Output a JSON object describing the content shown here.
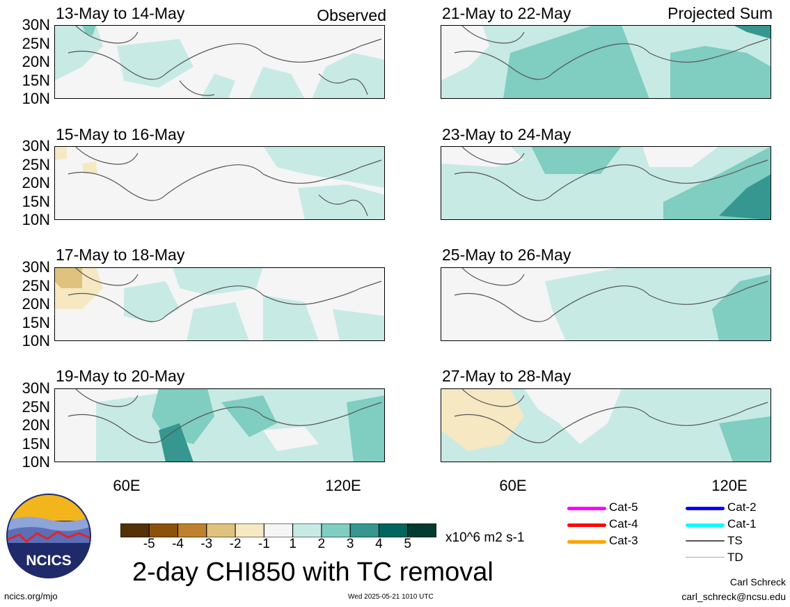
{
  "panels": [
    {
      "title": "13-May to 14-May",
      "tag": "Observed"
    },
    {
      "title": "15-May to 16-May",
      "tag": ""
    },
    {
      "title": "17-May to 18-May",
      "tag": ""
    },
    {
      "title": "19-May to 20-May",
      "tag": ""
    },
    {
      "title": "21-May to 22-May",
      "tag": "Projected Sum"
    },
    {
      "title": "23-May to 24-May",
      "tag": ""
    },
    {
      "title": "25-May to 26-May",
      "tag": ""
    },
    {
      "title": "27-May to 28-May",
      "tag": ""
    }
  ],
  "lat_labels": [
    "30N",
    "25N",
    "20N",
    "15N",
    "10N"
  ],
  "lon_labels": [
    "60E",
    "120E"
  ],
  "colorbar": {
    "ticks": [
      "-5",
      "-4",
      "-3",
      "-2",
      "-1",
      "1",
      "2",
      "3",
      "4",
      "5"
    ],
    "colors": [
      "#543005",
      "#8c510a",
      "#bf812d",
      "#dfc27d",
      "#f6e8c3",
      "#f5f5f5",
      "#c7eae5",
      "#80cdc1",
      "#35978f",
      "#01665e",
      "#003c30"
    ],
    "units": "x10^6 m2 s-1"
  },
  "legend": [
    {
      "label": "Cat-5",
      "color": "#ff00ff"
    },
    {
      "label": "Cat-4",
      "color": "#ff0000"
    },
    {
      "label": "Cat-3",
      "color": "#ffa500"
    },
    {
      "label": "Cat-2",
      "color": "#0000ff"
    },
    {
      "label": "Cat-1",
      "color": "#00ffff"
    },
    {
      "label": "TS",
      "color": "#555555"
    },
    {
      "label": "TD",
      "color": "#aaaaaa"
    }
  ],
  "main_title": "2-day CHI850 with TC removal",
  "logo_text": "NCICS",
  "footer": {
    "url": "ncics.org/mjo",
    "timestamp": "Wed 2025-05-21 1010 UTC",
    "author": "Carl Schreck",
    "email": "carl_schreck@ncsu.edu"
  }
}
